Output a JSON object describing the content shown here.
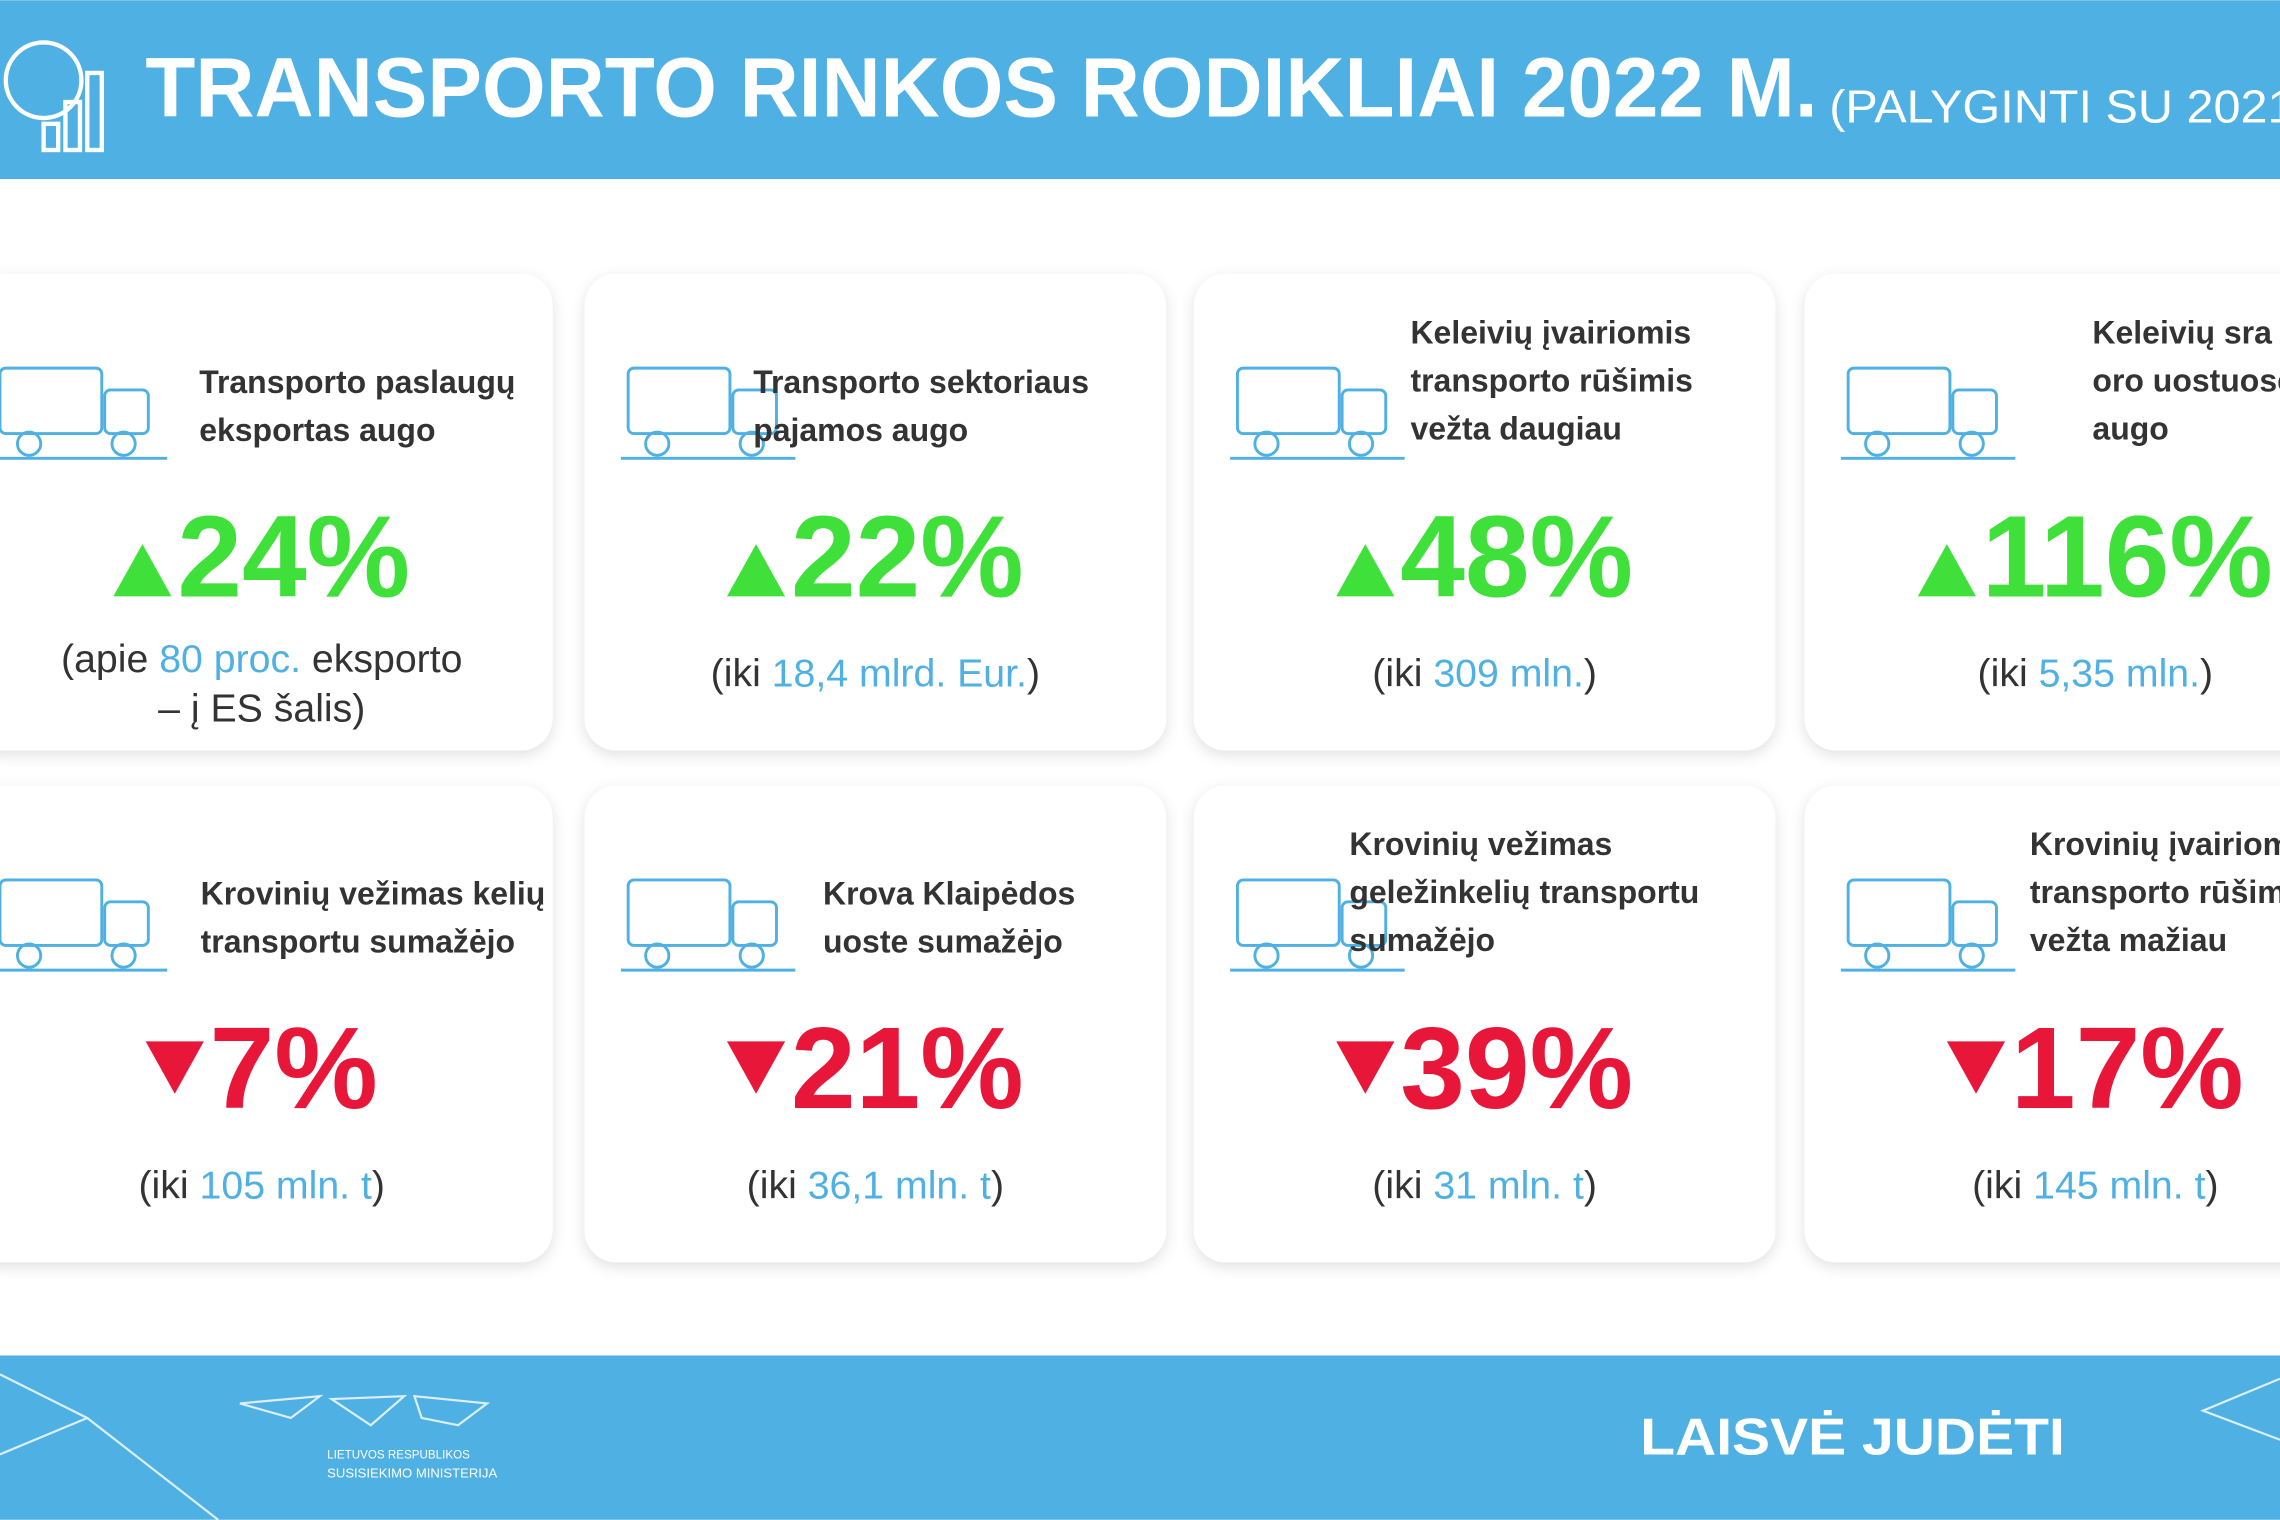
{
  "header": {
    "title": "TRANSPORTO RINKOS RODIKLIAI 2022 M.",
    "subtitle": "(PALYGINTI SU 2021"
  },
  "cards": [
    {
      "title": [
        "Transporto paslaugų",
        "eksportas augo"
      ],
      "value": "24%",
      "trend": "up",
      "note": [
        [
          {
            "text": "(apie "
          },
          {
            "text": "80 proc.",
            "highlight": true
          },
          {
            "text": " eksporto"
          }
        ],
        [
          {
            "text": "– į ES šalis)"
          }
        ]
      ]
    },
    {
      "title": [
        "Transporto sektoriaus",
        "pajamos augo"
      ],
      "value": "22%",
      "trend": "up",
      "note": [
        [
          {
            "text": "(iki "
          },
          {
            "text": "18,4 mlrd. Eur.",
            "highlight": true
          },
          {
            "text": ")"
          }
        ]
      ]
    },
    {
      "title": [
        "Keleivių įvairiomis",
        "transporto rūšimis",
        "vežta daugiau"
      ],
      "value": "48%",
      "trend": "up",
      "note": [
        [
          {
            "text": "(iki "
          },
          {
            "text": "309 mln.",
            "highlight": true
          },
          {
            "text": ")"
          }
        ]
      ]
    },
    {
      "title": [
        "Keleivių sra",
        "oro uostuose",
        "augo"
      ],
      "value": "116%",
      "trend": "up",
      "note": [
        [
          {
            "text": "(iki "
          },
          {
            "text": "5,35 mln.",
            "highlight": true
          },
          {
            "text": ")"
          }
        ]
      ]
    },
    {
      "title": [
        "Krovinių vežimas kelių",
        "transportu sumažėjo"
      ],
      "value": "7%",
      "trend": "down",
      "note": [
        [
          {
            "text": "(iki "
          },
          {
            "text": "105 mln. t",
            "highlight": true
          },
          {
            "text": ")"
          }
        ]
      ]
    },
    {
      "title": [
        "Krova Klaipėdos",
        "uoste sumažėjo"
      ],
      "value": "21%",
      "trend": "down",
      "note": [
        [
          {
            "text": "(iki "
          },
          {
            "text": "36,1 mln. t",
            "highlight": true
          },
          {
            "text": ")"
          }
        ]
      ]
    },
    {
      "title": [
        "Krovinių vežimas",
        "geležinkelių transportu",
        "sumažėjo"
      ],
      "value": "39%",
      "trend": "down",
      "note": [
        [
          {
            "text": "(iki "
          },
          {
            "text": "31 mln. t",
            "highlight": true
          },
          {
            "text": ")"
          }
        ]
      ]
    },
    {
      "title": [
        "Krovinių įvairiom",
        "transporto rūšim",
        "vežta mažiau"
      ],
      "value": "17%",
      "trend": "down",
      "note": [
        [
          {
            "text": "(iki "
          },
          {
            "text": "145 mln. t",
            "highlight": true
          },
          {
            "text": ")"
          }
        ]
      ]
    }
  ],
  "footer": {
    "ministry": [
      "LIETUVOS RESPUBLIKOS",
      "SUSISIEKIMO MINISTERIJA"
    ],
    "slogan": "LAISVĖ JUDĖTI"
  }
}
